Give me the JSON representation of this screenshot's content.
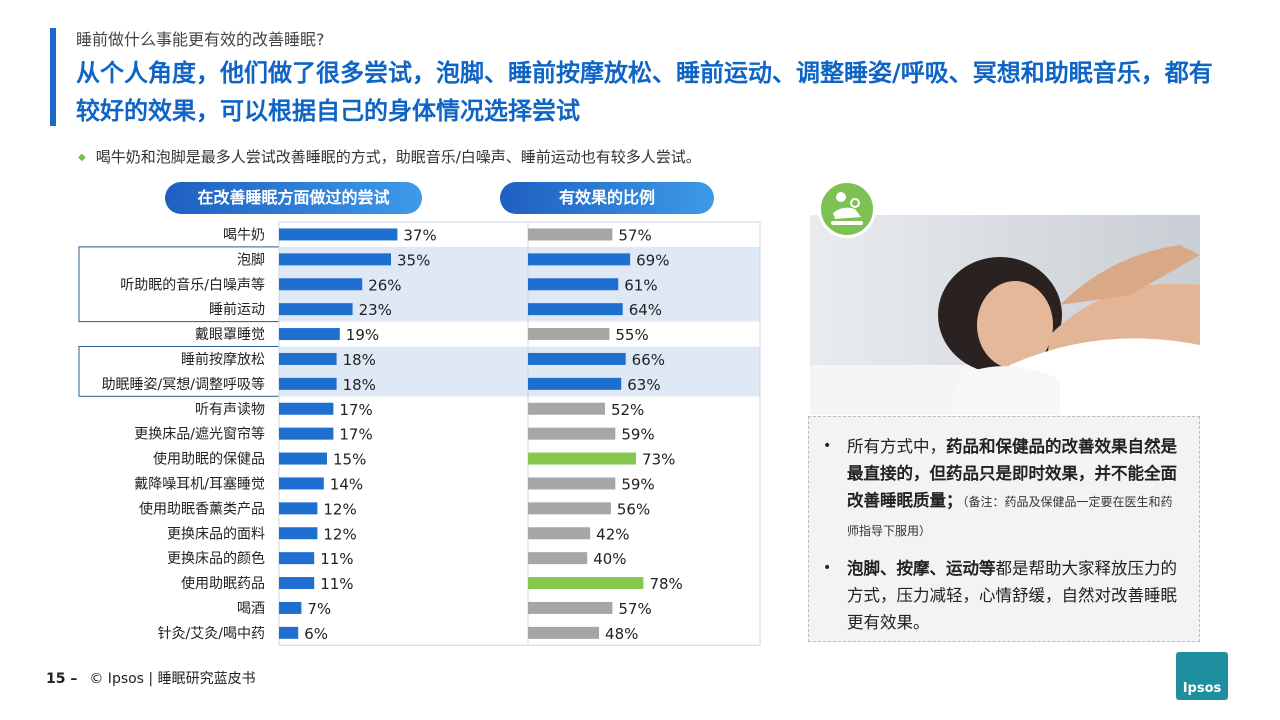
{
  "header": {
    "subtitle": "睡前做什么事能更有效的改善睡眠?",
    "headline": "从个人角度，他们做了很多尝试，泡脚、睡前按摩放松、睡前运动、调整睡姿/呼吸、冥想和助眠音乐，都有较好的效果，可以根据自己的身体情况选择尝试",
    "bullet": "喝牛奶和泡脚是最多人尝试改善睡眠的方式，助眠音乐/白噪声、睡前运动也有较多人尝试。"
  },
  "pills": {
    "left": "在改善睡眠方面做过的尝试",
    "right": "有效果的比例"
  },
  "colors": {
    "blue": "#1f6fd0",
    "gray": "#a6a6a6",
    "green": "#86c84e",
    "highlight": "#dfe9f6"
  },
  "chart_data": {
    "type": "bar",
    "categories": [
      "喝牛奶",
      "泡脚",
      "听助眠的音乐/白噪声等",
      "睡前运动",
      "戴眼罩睡觉",
      "睡前按摩放松",
      "助眠睡姿/冥想/调整呼吸等",
      "听有声读物",
      "更换床品/遮光窗帘等",
      "使用助眠的保健品",
      "戴降噪耳机/耳塞睡觉",
      "使用助眠香薰类产品",
      "更换床品的面料",
      "更换床品的颜色",
      "使用助眠药品",
      "喝酒",
      "针灸/艾灸/喝中药"
    ],
    "series": [
      {
        "name": "在改善睡眠方面做过的尝试",
        "values": [
          37,
          35,
          26,
          23,
          19,
          18,
          18,
          17,
          17,
          15,
          14,
          12,
          12,
          11,
          11,
          7,
          6
        ]
      },
      {
        "name": "有效果的比例",
        "values": [
          57,
          69,
          61,
          64,
          55,
          66,
          63,
          52,
          59,
          73,
          59,
          56,
          42,
          40,
          78,
          57,
          48
        ]
      }
    ],
    "value_labels_left": [
      "37%",
      "35%",
      "26%",
      "23%",
      "19%",
      "18%",
      "18%",
      "17%",
      "17%",
      "15%",
      "14%",
      "12%",
      "12%",
      "11%",
      "11%",
      "7%",
      "6%"
    ],
    "value_labels_right": [
      "57%",
      "69%",
      "61%",
      "64%",
      "55%",
      "66%",
      "63%",
      "52%",
      "59%",
      "73%",
      "59%",
      "56%",
      "42%",
      "40%",
      "78%",
      "57%",
      "48%"
    ],
    "right_color": [
      "gray",
      "blue",
      "blue",
      "blue",
      "gray",
      "blue",
      "blue",
      "gray",
      "gray",
      "green",
      "gray",
      "gray",
      "gray",
      "gray",
      "green",
      "gray",
      "gray"
    ],
    "highlight_groups": [
      [
        1,
        3
      ],
      [
        5,
        6
      ]
    ]
  },
  "notes": {
    "n1_pre": "所有方式中，",
    "n1_bold": "药品和保健品的改善效果自然是最直接的，但药品只是即时效果，并不能全面改善睡眠质量；",
    "n1_small": "（备注：药品及保健品一定要在医生和药师指导下服用）",
    "n2_bold": "泡脚、按摩、运动等",
    "n2_rest": "都是帮助大家释放压力的方式，压力减轻，心情舒缓，自然对改善睡眠更有效果。"
  },
  "footer": {
    "page": "15 –",
    "text": "© Ipsos | 睡眠研究蓝皮书"
  },
  "logo": {
    "text": "Ipsos"
  }
}
